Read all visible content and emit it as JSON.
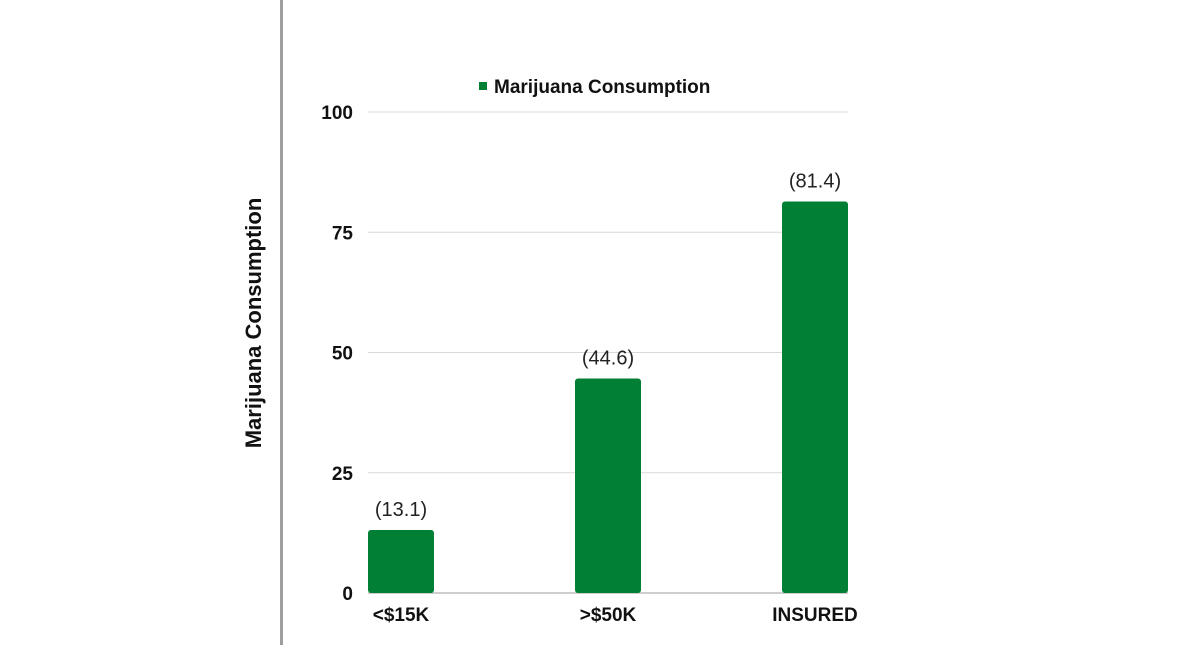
{
  "chart_data": {
    "type": "bar",
    "categories": [
      "<$15K",
      ">$50K",
      "INSURED"
    ],
    "series": [
      {
        "name": "Marijuana Consumption",
        "values": [
          13.1,
          44.6,
          81.4
        ]
      }
    ],
    "value_labels": [
      "(13.1)",
      "(44.6)",
      "(81.4)"
    ],
    "ylabel": "Marijuana Consumption",
    "xlabel": "",
    "title": "",
    "ylim": [
      0,
      100
    ],
    "yticks": [
      0,
      25,
      50,
      75,
      100
    ],
    "grid": true,
    "legend_position": "top",
    "colors": {
      "bar": "#017F35",
      "grid": "#d9d9d9",
      "axis": "#bdbdbd",
      "rule": "#9e9e9e"
    }
  }
}
